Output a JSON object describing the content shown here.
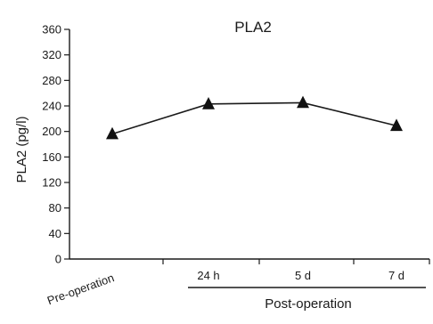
{
  "chart_data": {
    "type": "line",
    "title": "PLA2",
    "ylabel": "PLA2 (pg/l)",
    "xlabel": "",
    "categories": [
      "Pre-operation",
      "24 h",
      "5 d",
      "7 d"
    ],
    "group_label": "Post-operation",
    "ylim": [
      0,
      360
    ],
    "yticks": [
      0,
      40,
      80,
      120,
      160,
      200,
      240,
      280,
      320,
      360
    ],
    "grid": false,
    "series": [
      {
        "values": [
          196,
          243,
          245,
          209
        ],
        "marker": "triangle",
        "color": "#111111"
      }
    ]
  }
}
